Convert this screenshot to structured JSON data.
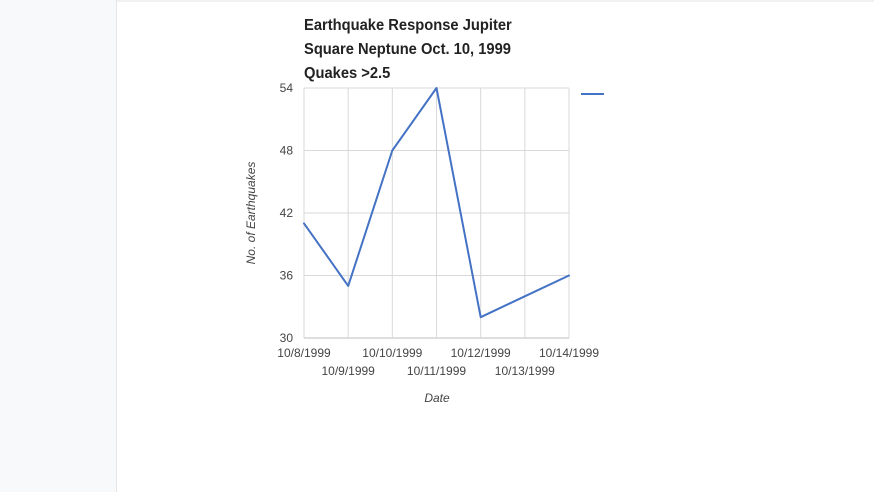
{
  "chart_data": {
    "type": "line",
    "title_lines": [
      "Earthquake Response Jupiter",
      "Square Neptune Oct. 10, 1999",
      "Quakes >2.5"
    ],
    "xlabel": "Date",
    "ylabel": "No. of Earthquakes",
    "ylim": [
      30,
      54
    ],
    "yticks": [
      "30",
      "36",
      "42",
      "48",
      "54"
    ],
    "categories": [
      "10/8/1999",
      "10/9/1999",
      "10/10/1999",
      "10/11/1999",
      "10/12/1999",
      "10/13/1999",
      "10/14/1999"
    ],
    "series": [
      {
        "values": [
          41,
          35,
          48,
          54,
          32,
          34,
          36
        ],
        "color": "#4472c4"
      }
    ],
    "grid": true,
    "legend": "right"
  }
}
